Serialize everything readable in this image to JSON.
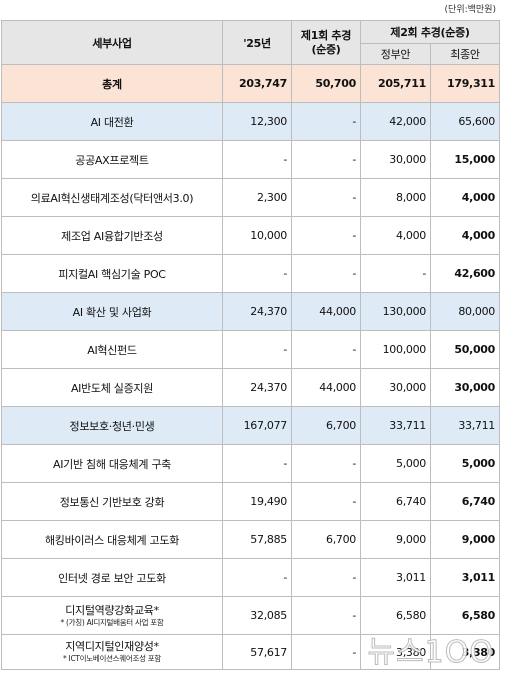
{
  "unit_label": "(단위:백만원)",
  "headers": {
    "item": "세부사업",
    "y25": "'25년",
    "supp1_line1": "제1회 추경",
    "supp1_line2": "(순증)",
    "supp2": "제2회 추경(순증)",
    "gov": "정부안",
    "final": "최종안"
  },
  "rows": [
    {
      "name": "총계",
      "y25": "203,747",
      "supp1": "50,700",
      "gov": "205,711",
      "final": "179,311",
      "kind": "total"
    },
    {
      "name": "AI 대전환",
      "y25": "12,300",
      "supp1": "-",
      "gov": "42,000",
      "final": "65,600",
      "kind": "cat"
    },
    {
      "name": "공공AX프로젝트",
      "y25": "-",
      "supp1": "-",
      "gov": "30,000",
      "final": "15,000",
      "kind": "sub"
    },
    {
      "name": "의료AI혁신생태계조성(닥터앤서3.0)",
      "y25": "2,300",
      "supp1": "-",
      "gov": "8,000",
      "final": "4,000",
      "kind": "sub"
    },
    {
      "name": "제조업 AI융합기반조성",
      "y25": "10,000",
      "supp1": "-",
      "gov": "4,000",
      "final": "4,000",
      "kind": "sub"
    },
    {
      "name": "피지컬AI 핵심기술 POC",
      "y25": "-",
      "supp1": "-",
      "gov": "-",
      "final": "42,600",
      "kind": "sub"
    },
    {
      "name": "AI 확산 및 사업화",
      "y25": "24,370",
      "supp1": "44,000",
      "gov": "130,000",
      "final": "80,000",
      "kind": "cat"
    },
    {
      "name": "AI혁신펀드",
      "y25": "-",
      "supp1": "-",
      "gov": "100,000",
      "final": "50,000",
      "kind": "sub"
    },
    {
      "name": "AI반도체 실증지원",
      "y25": "24,370",
      "supp1": "44,000",
      "gov": "30,000",
      "final": "30,000",
      "kind": "sub"
    },
    {
      "name": "정보보호·청년·민생",
      "y25": "167,077",
      "supp1": "6,700",
      "gov": "33,711",
      "final": "33,711",
      "kind": "cat"
    },
    {
      "name": "AI기반 침해 대응체계 구축",
      "y25": "-",
      "supp1": "-",
      "gov": "5,000",
      "final": "5,000",
      "kind": "sub"
    },
    {
      "name": "정보통신 기반보호 강화",
      "y25": "19,490",
      "supp1": "-",
      "gov": "6,740",
      "final": "6,740",
      "kind": "sub"
    },
    {
      "name": "해킹바이러스 대응체계 고도화",
      "y25": "57,885",
      "supp1": "6,700",
      "gov": "9,000",
      "final": "9,000",
      "kind": "sub"
    },
    {
      "name": "인터넷 경로 보안 고도화",
      "y25": "-",
      "supp1": "-",
      "gov": "3,011",
      "final": "3,011",
      "kind": "sub"
    },
    {
      "name": "디지털역량강화교육*",
      "note": "* (가칭) AI디지털배움터 사업 포함",
      "y25": "32,085",
      "supp1": "-",
      "gov": "6,580",
      "final": "6,580",
      "kind": "sub"
    },
    {
      "name": "지역디지털인재양성*",
      "note": "* ICT이노베이션스퀘어조성 포함",
      "y25": "57,617",
      "supp1": "-",
      "gov": "3,380",
      "final": "3,380",
      "kind": "sub"
    }
  ],
  "watermark": "뉴스1OO"
}
